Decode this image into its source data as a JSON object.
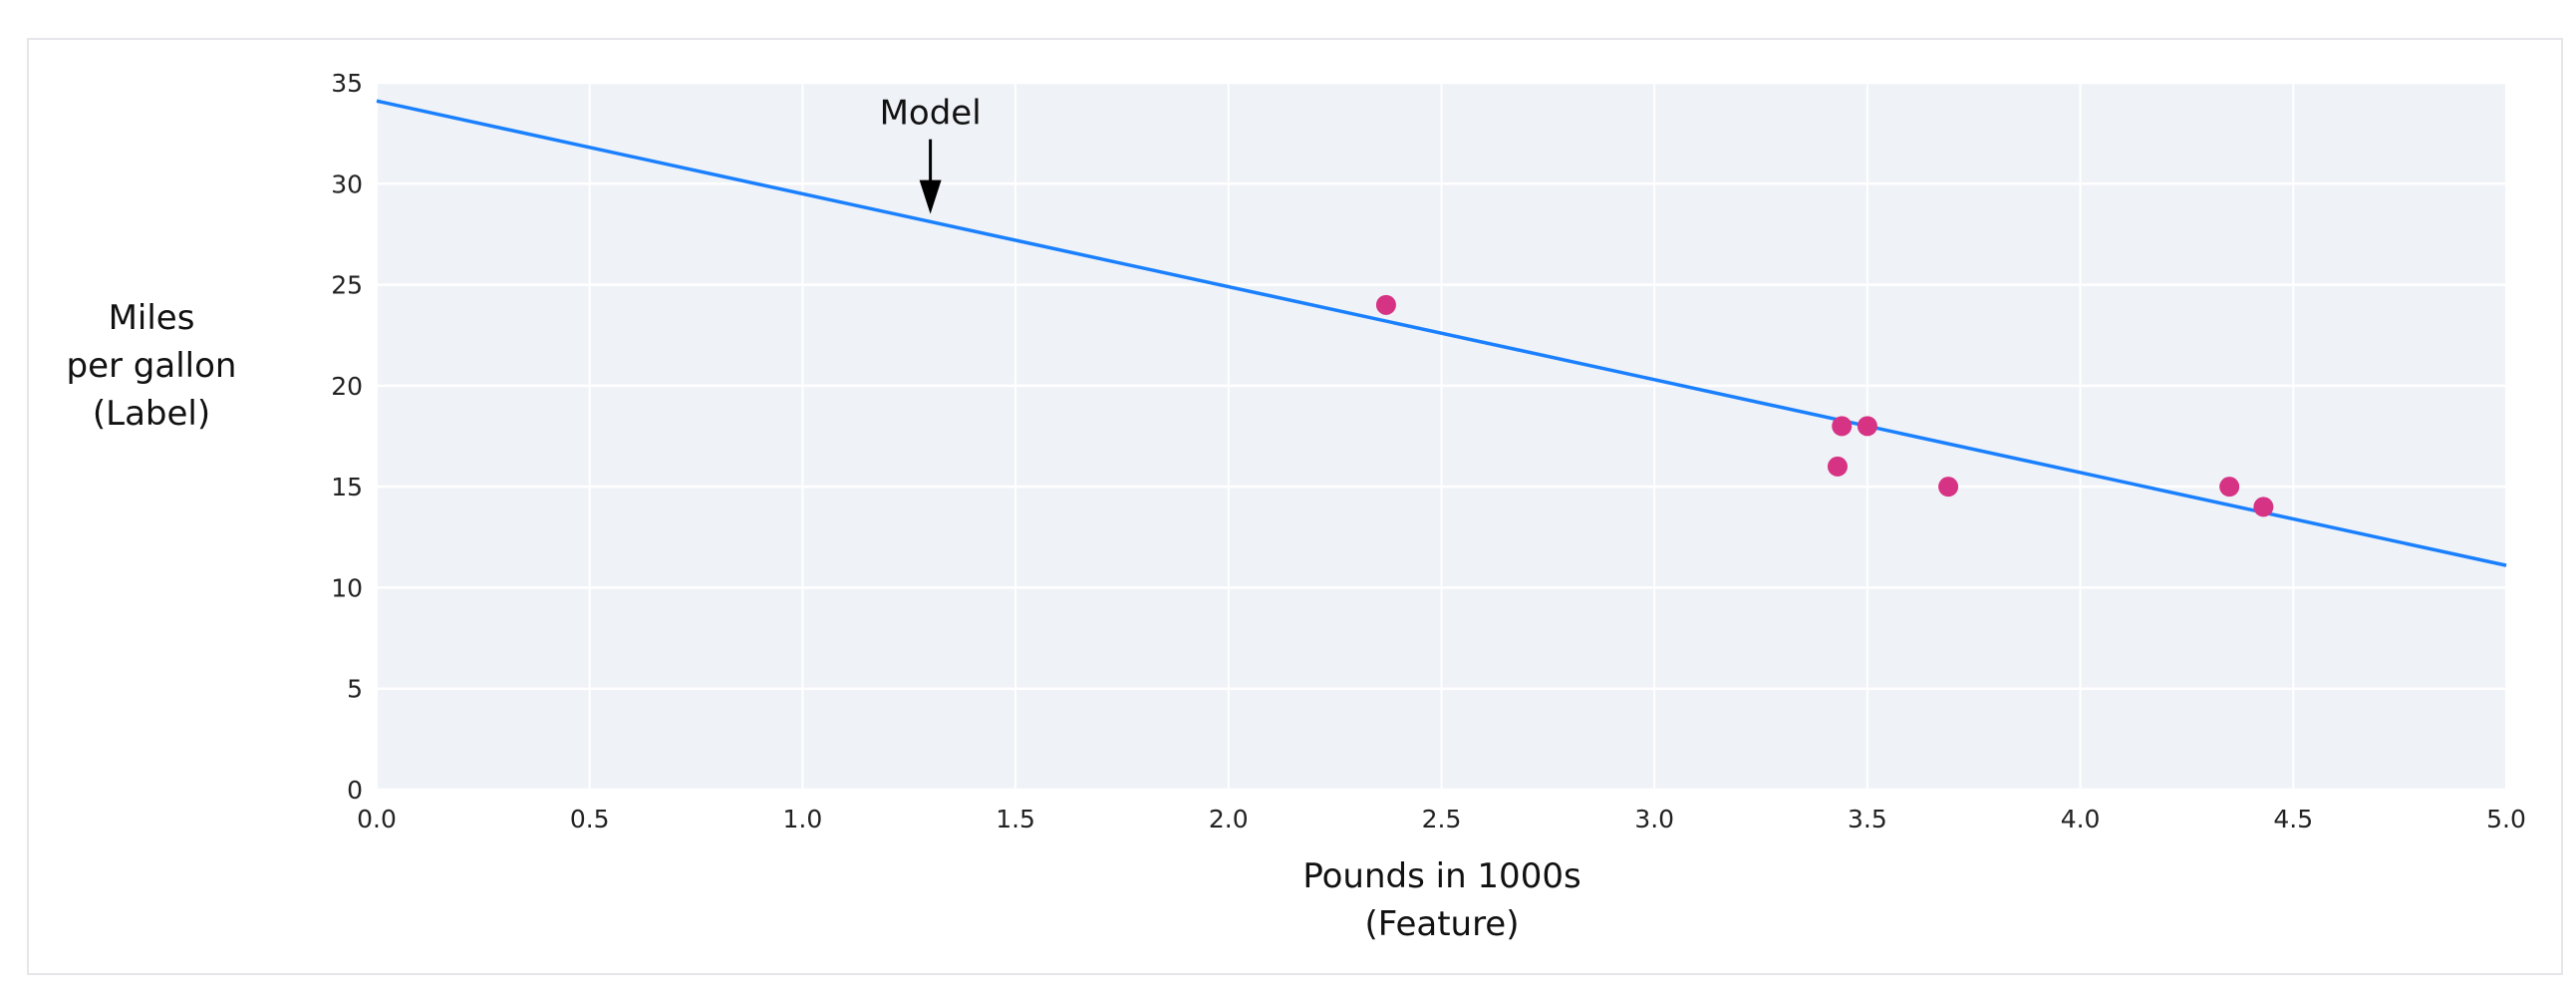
{
  "chart_data": {
    "type": "scatter",
    "title": "",
    "xlabel": [
      "Pounds in 1000s",
      "(Feature)"
    ],
    "ylabel": [
      "Miles",
      "per gallon",
      "(Label)"
    ],
    "xlim": [
      0,
      5
    ],
    "ylim": [
      0,
      35
    ],
    "xticks": [
      "0.0",
      "0.5",
      "1.0",
      "1.5",
      "2.0",
      "2.5",
      "3.0",
      "3.5",
      "4.0",
      "4.5",
      "5.0"
    ],
    "yticks": [
      "0",
      "5",
      "10",
      "15",
      "20",
      "25",
      "30",
      "35"
    ],
    "grid": true,
    "background_color": "#eff2f7",
    "points": {
      "color": "#d63384",
      "x": [
        2.37,
        3.44,
        3.5,
        3.43,
        3.69,
        4.35,
        4.43
      ],
      "y": [
        24,
        18,
        18,
        16,
        15,
        15,
        14
      ]
    },
    "line": {
      "color": "#1a80ff",
      "x": [
        0,
        5
      ],
      "y": [
        34.1,
        11.1
      ]
    },
    "annotation": {
      "text": "Model",
      "x": 1.3,
      "y": 28.5
    }
  }
}
